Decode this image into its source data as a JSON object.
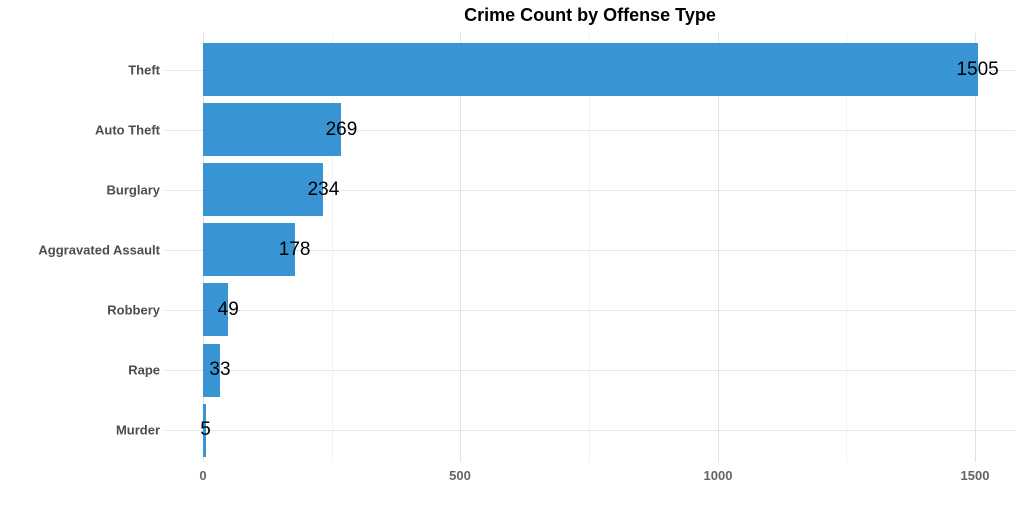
{
  "chart_data": {
    "type": "bar",
    "orientation": "horizontal",
    "title": "Crime Count by Offense Type",
    "xlabel": "",
    "ylabel": "",
    "categories": [
      "Theft",
      "Auto Theft",
      "Burglary",
      "Aggravated Assault",
      "Robbery",
      "Rape",
      "Murder"
    ],
    "values": [
      1505,
      269,
      234,
      178,
      49,
      33,
      5
    ],
    "bar_labels": [
      "1505",
      "269",
      "234",
      "178",
      "49",
      "33",
      "5"
    ],
    "x_major_ticks": [
      0,
      500,
      1000,
      1500
    ],
    "x_tick_labels": [
      "0",
      "500",
      "1000",
      "1500"
    ],
    "x_minor_gridlines": [
      250,
      750,
      1250
    ],
    "xlim": [
      0,
      1580
    ],
    "grid": "on",
    "legend": "none",
    "colors": {
      "bar": "#3994d4",
      "title": "#000000",
      "value_label": "#000000",
      "category_label": "#4d4d4d",
      "tick_label": "#646464",
      "grid_major": "#e3e3e3",
      "grid_minor": "#f2f2f2",
      "background": "#ffffff"
    }
  }
}
